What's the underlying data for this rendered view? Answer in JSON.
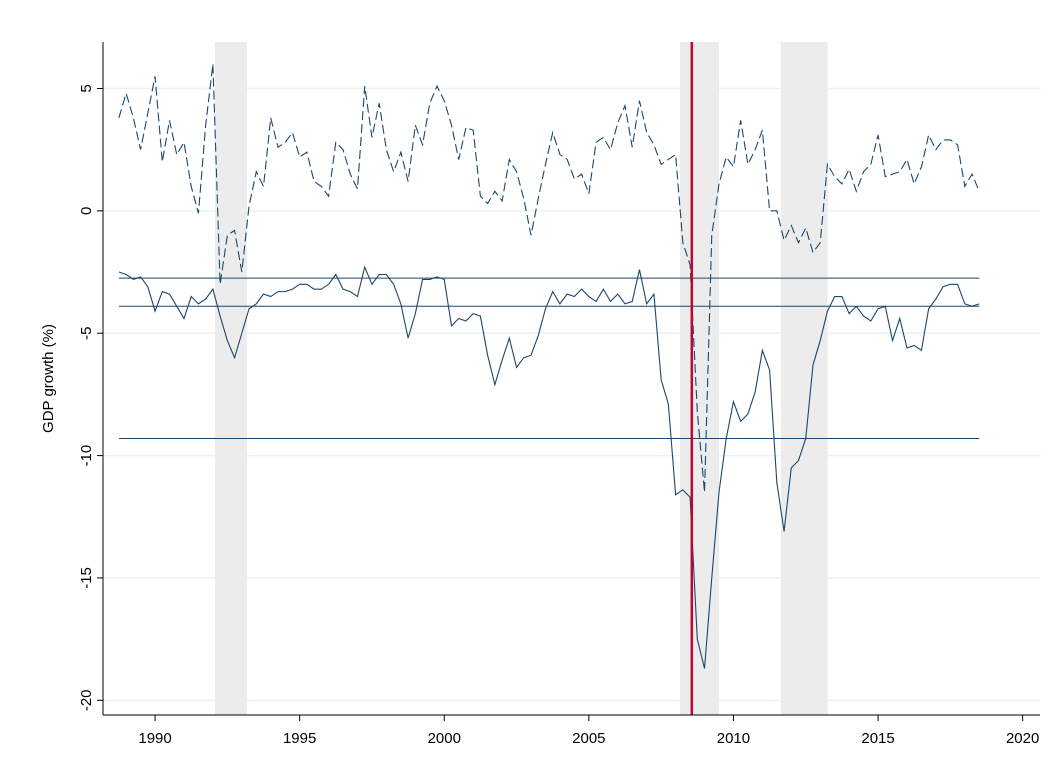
{
  "chart_data": {
    "type": "line",
    "y_label": "GDP growth (%)",
    "xlim": [
      1988.2,
      2020.6
    ],
    "ylim": [
      -20.6,
      6.9
    ],
    "xticks": [
      1990,
      1995,
      2000,
      2005,
      2010,
      2015,
      2020
    ],
    "yticks": [
      -20,
      -15,
      -10,
      -5,
      0,
      5
    ],
    "grid": true,
    "x": [
      1988.75,
      1989,
      1989.25,
      1989.5,
      1989.75,
      1990,
      1990.25,
      1990.5,
      1990.75,
      1991,
      1991.25,
      1991.5,
      1991.75,
      1992,
      1992.25,
      1992.5,
      1992.75,
      1993,
      1993.25,
      1993.5,
      1993.75,
      1994,
      1994.25,
      1994.5,
      1994.75,
      1995,
      1995.25,
      1995.5,
      1995.75,
      1996,
      1996.25,
      1996.5,
      1996.75,
      1997,
      1997.25,
      1997.5,
      1997.75,
      1998,
      1998.25,
      1998.5,
      1998.75,
      1999,
      1999.25,
      1999.5,
      1999.75,
      2000,
      2000.25,
      2000.5,
      2000.75,
      2001,
      2001.25,
      2001.5,
      2001.75,
      2002,
      2002.25,
      2002.5,
      2002.75,
      2003,
      2003.25,
      2003.5,
      2003.75,
      2004,
      2004.25,
      2004.5,
      2004.75,
      2005,
      2005.25,
      2005.5,
      2005.75,
      2006,
      2006.25,
      2006.5,
      2006.75,
      2007,
      2007.25,
      2007.5,
      2007.75,
      2008,
      2008.25,
      2008.5,
      2008.75,
      2009,
      2009.25,
      2009.5,
      2009.75,
      2010,
      2010.25,
      2010.5,
      2010.75,
      2011,
      2011.25,
      2011.5,
      2011.75,
      2012,
      2012.25,
      2012.5,
      2012.75,
      2013,
      2013.25,
      2013.5,
      2013.75,
      2014,
      2014.25,
      2014.5,
      2014.75,
      2015,
      2015.25,
      2015.5,
      2015.75,
      2016,
      2016.25,
      2016.5,
      2016.75,
      2017,
      2017.25,
      2017.5,
      2017.75,
      2018,
      2018.25,
      2018.5
    ],
    "series": [
      {
        "color": "#1a476f",
        "dash": true,
        "values": [
          3.8,
          4.8,
          3.8,
          2.5,
          4.0,
          5.5,
          2.0,
          3.7,
          2.3,
          2.8,
          1.0,
          -0.1,
          3.5,
          6.0,
          -3.0,
          -1.0,
          -0.8,
          -2.5,
          0.2,
          1.6,
          1.0,
          3.8,
          2.6,
          2.8,
          3.2,
          2.2,
          2.4,
          1.2,
          1.0,
          0.6,
          2.8,
          2.5,
          1.5,
          0.9,
          5.1,
          3.0,
          4.4,
          2.5,
          1.6,
          2.4,
          1.2,
          3.5,
          2.7,
          4.4,
          5.1,
          4.5,
          3.5,
          2.1,
          3.4,
          3.3,
          0.6,
          0.3,
          0.8,
          0.4,
          2.1,
          1.6,
          0.5,
          -1.0,
          0.5,
          1.9,
          3.2,
          2.3,
          2.1,
          1.3,
          1.5,
          0.7,
          2.8,
          3.0,
          2.5,
          3.6,
          4.3,
          2.6,
          4.5,
          3.2,
          2.7,
          1.9,
          2.1,
          2.3,
          -1.3,
          -2.2,
          -8.2,
          -11.5,
          -1.0,
          1.1,
          2.2,
          1.8,
          3.7,
          1.9,
          2.5,
          3.3,
          0.0,
          0.0,
          -1.2,
          -0.6,
          -1.3,
          -0.7,
          -1.7,
          -1.3,
          1.9,
          1.4,
          1.1,
          1.7,
          0.8,
          1.6,
          1.9,
          3.1,
          1.4,
          1.5,
          1.6,
          2.1,
          1.1,
          1.8,
          3.1,
          2.5,
          2.9,
          2.9,
          2.7,
          1.0,
          1.5,
          0.8
        ]
      },
      {
        "color": "#1a476f",
        "dash": false,
        "values": [
          -2.5,
          -2.6,
          -2.8,
          -2.7,
          -3.1,
          -4.1,
          -3.3,
          -3.4,
          -3.9,
          -4.4,
          -3.5,
          -3.8,
          -3.6,
          -3.2,
          -4.3,
          -5.3,
          -6.0,
          -5.0,
          -4.0,
          -3.8,
          -3.4,
          -3.5,
          -3.3,
          -3.3,
          -3.2,
          -3.0,
          -3.0,
          -3.2,
          -3.2,
          -3.0,
          -2.6,
          -3.2,
          -3.3,
          -3.5,
          -2.3,
          -3.0,
          -2.6,
          -2.6,
          -3.0,
          -3.8,
          -5.2,
          -4.2,
          -2.8,
          -2.8,
          -2.7,
          -2.8,
          -4.7,
          -4.4,
          -4.5,
          -4.2,
          -4.3,
          -5.9,
          -7.1,
          -6.1,
          -5.2,
          -6.4,
          -6.0,
          -5.9,
          -5.1,
          -4.0,
          -3.3,
          -3.8,
          -3.4,
          -3.5,
          -3.2,
          -3.5,
          -3.7,
          -3.2,
          -3.7,
          -3.4,
          -3.8,
          -3.7,
          -2.4,
          -3.8,
          -3.4,
          -6.9,
          -7.9,
          -11.6,
          -11.4,
          -11.7,
          -17.5,
          -18.7,
          -15.0,
          -11.5,
          -9.3,
          -7.8,
          -8.6,
          -8.3,
          -7.4,
          -5.7,
          -6.5,
          -11.1,
          -13.1,
          -10.5,
          -10.2,
          -9.3,
          -6.3,
          -5.3,
          -4.1,
          -3.5,
          -3.5,
          -4.2,
          -3.9,
          -4.3,
          -4.5,
          -4.0,
          -3.9,
          -5.3,
          -4.4,
          -5.6,
          -5.5,
          -5.7,
          -4.0,
          -3.6,
          -3.1,
          -3.0,
          -3.0,
          -3.8,
          -3.9,
          -3.8
        ]
      }
    ],
    "hlines": [
      -2.75,
      -3.9,
      -9.3
    ],
    "hline_color": "#1a476f",
    "shaded_regions": [
      [
        1992.07,
        1993.18
      ],
      [
        2008.15,
        2009.5
      ],
      [
        2011.64,
        2013.26
      ]
    ],
    "shade_color": "#ececec",
    "vline": 2008.56,
    "vline_color": "#c10534"
  }
}
